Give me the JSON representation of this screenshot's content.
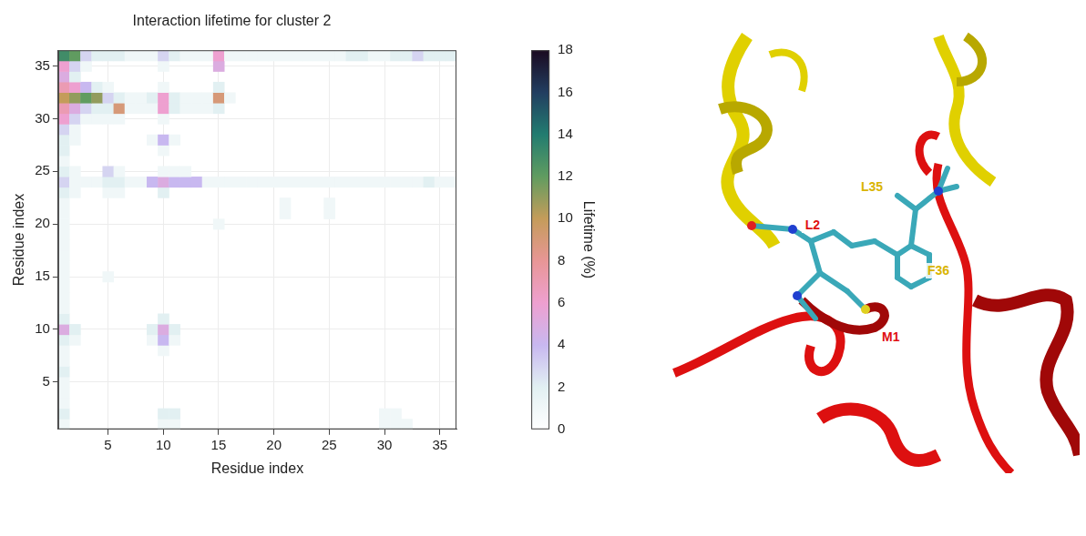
{
  "chart_data": {
    "type": "heatmap",
    "title": "Interaction lifetime for cluster 2",
    "x_label": "Residue index",
    "y_label": "Residue index",
    "x": [
      1,
      2,
      3,
      4,
      5,
      6,
      7,
      8,
      9,
      10,
      11,
      12,
      13,
      14,
      15,
      16,
      17,
      18,
      19,
      20,
      21,
      22,
      23,
      24,
      25,
      26,
      27,
      28,
      29,
      30,
      31,
      32,
      33,
      34,
      35,
      36
    ],
    "y": [
      1,
      2,
      3,
      4,
      5,
      6,
      7,
      8,
      9,
      10,
      11,
      12,
      13,
      14,
      15,
      16,
      17,
      18,
      19,
      20,
      21,
      22,
      23,
      24,
      25,
      26,
      27,
      28,
      29,
      30,
      31,
      32,
      33,
      34,
      35,
      36
    ],
    "xlim": [
      0.5,
      36.5
    ],
    "ylim": [
      0.5,
      36.5
    ],
    "xticks": [
      5,
      10,
      15,
      20,
      25,
      30,
      35
    ],
    "yticks": [
      5,
      10,
      15,
      20,
      25,
      30,
      35
    ],
    "grid": true,
    "z": [
      [
        1,
        0,
        0,
        0,
        0,
        0,
        0,
        0,
        0,
        1,
        1,
        0,
        0,
        0,
        0,
        0,
        0,
        0,
        0,
        0,
        0,
        0,
        0,
        0,
        0,
        0,
        0,
        0,
        0,
        1,
        1,
        1,
        0,
        0,
        0,
        0
      ],
      [
        2,
        0,
        0,
        0,
        0,
        0,
        0,
        0,
        0,
        2,
        2,
        0,
        0,
        0,
        0,
        0,
        0,
        0,
        0,
        0,
        0,
        0,
        0,
        0,
        0,
        0,
        0,
        0,
        0,
        1,
        1,
        0,
        0,
        0,
        0,
        0
      ],
      [
        1,
        0,
        0,
        0,
        0,
        0,
        0,
        0,
        0,
        0,
        0,
        0,
        0,
        0,
        0,
        0,
        0,
        0,
        0,
        0,
        0,
        0,
        0,
        0,
        0,
        0,
        0,
        0,
        0,
        0,
        0,
        0,
        0,
        0,
        0,
        0
      ],
      [
        1,
        0,
        0,
        0,
        0,
        0,
        0,
        0,
        0,
        0,
        0,
        0,
        0,
        0,
        0,
        0,
        0,
        0,
        0,
        0,
        0,
        0,
        0,
        0,
        0,
        0,
        0,
        0,
        0,
        0,
        0,
        0,
        0,
        0,
        0,
        0
      ],
      [
        1,
        0,
        0,
        0,
        0,
        0,
        0,
        0,
        0,
        0,
        0,
        0,
        0,
        0,
        0,
        0,
        0,
        0,
        0,
        0,
        0,
        0,
        0,
        0,
        0,
        0,
        0,
        0,
        0,
        0,
        0,
        0,
        0,
        0,
        0,
        0
      ],
      [
        2,
        0,
        0,
        0,
        0,
        0,
        0,
        0,
        0,
        0,
        0,
        0,
        0,
        0,
        0,
        0,
        0,
        0,
        0,
        0,
        0,
        0,
        0,
        0,
        0,
        0,
        0,
        0,
        0,
        0,
        0,
        0,
        0,
        0,
        0,
        0
      ],
      [
        1,
        0,
        0,
        0,
        0,
        0,
        0,
        0,
        0,
        0,
        0,
        0,
        0,
        0,
        0,
        0,
        0,
        0,
        0,
        0,
        0,
        0,
        0,
        0,
        0,
        0,
        0,
        0,
        0,
        0,
        0,
        0,
        0,
        0,
        0,
        0
      ],
      [
        1,
        0,
        0,
        0,
        0,
        0,
        0,
        0,
        0,
        1,
        0,
        0,
        0,
        0,
        0,
        0,
        0,
        0,
        0,
        0,
        0,
        0,
        0,
        0,
        0,
        0,
        0,
        0,
        0,
        0,
        0,
        0,
        0,
        0,
        0,
        0
      ],
      [
        2,
        1,
        0,
        0,
        0,
        0,
        0,
        0,
        1,
        4,
        1,
        0,
        0,
        0,
        0,
        0,
        0,
        0,
        0,
        0,
        0,
        0,
        0,
        0,
        0,
        0,
        0,
        0,
        0,
        0,
        0,
        0,
        0,
        0,
        0,
        0
      ],
      [
        5,
        2,
        0,
        0,
        0,
        0,
        0,
        0,
        2,
        5,
        2,
        0,
        0,
        0,
        0,
        0,
        0,
        0,
        0,
        0,
        0,
        0,
        0,
        0,
        0,
        0,
        0,
        0,
        0,
        0,
        0,
        0,
        0,
        0,
        0,
        0
      ],
      [
        2,
        0,
        0,
        0,
        0,
        0,
        0,
        0,
        0,
        2,
        0,
        0,
        0,
        0,
        0,
        0,
        0,
        0,
        0,
        0,
        0,
        0,
        0,
        0,
        0,
        0,
        0,
        0,
        0,
        0,
        0,
        0,
        0,
        0,
        0,
        0
      ],
      [
        1,
        0,
        0,
        0,
        0,
        0,
        0,
        0,
        0,
        0,
        0,
        0,
        0,
        0,
        0,
        0,
        0,
        0,
        0,
        0,
        0,
        0,
        0,
        0,
        0,
        0,
        0,
        0,
        0,
        0,
        0,
        0,
        0,
        0,
        0,
        0
      ],
      [
        1,
        0,
        0,
        0,
        0,
        0,
        0,
        0,
        0,
        0,
        0,
        0,
        0,
        0,
        0,
        0,
        0,
        0,
        0,
        0,
        0,
        0,
        0,
        0,
        0,
        0,
        0,
        0,
        0,
        0,
        0,
        0,
        0,
        0,
        0,
        0
      ],
      [
        1,
        0,
        0,
        0,
        0,
        0,
        0,
        0,
        0,
        0,
        0,
        0,
        0,
        0,
        0,
        0,
        0,
        0,
        0,
        0,
        0,
        0,
        0,
        0,
        0,
        0,
        0,
        0,
        0,
        0,
        0,
        0,
        0,
        0,
        0,
        0
      ],
      [
        1,
        0,
        0,
        0,
        1,
        0,
        0,
        0,
        0,
        0,
        0,
        0,
        0,
        0,
        0,
        0,
        0,
        0,
        0,
        0,
        0,
        0,
        0,
        0,
        0,
        0,
        0,
        0,
        0,
        0,
        0,
        0,
        0,
        0,
        0,
        0
      ],
      [
        1,
        0,
        0,
        0,
        0,
        0,
        0,
        0,
        0,
        0,
        0,
        0,
        0,
        0,
        0,
        0,
        0,
        0,
        0,
        0,
        0,
        0,
        0,
        0,
        0,
        0,
        0,
        0,
        0,
        0,
        0,
        0,
        0,
        0,
        0,
        0
      ],
      [
        1,
        0,
        0,
        0,
        0,
        0,
        0,
        0,
        0,
        0,
        0,
        0,
        0,
        0,
        0,
        0,
        0,
        0,
        0,
        0,
        0,
        0,
        0,
        0,
        0,
        0,
        0,
        0,
        0,
        0,
        0,
        0,
        0,
        0,
        0,
        0
      ],
      [
        1,
        0,
        0,
        0,
        0,
        0,
        0,
        0,
        0,
        0,
        0,
        0,
        0,
        0,
        0,
        0,
        0,
        0,
        0,
        0,
        0,
        0,
        0,
        0,
        0,
        0,
        0,
        0,
        0,
        0,
        0,
        0,
        0,
        0,
        0,
        0
      ],
      [
        1,
        0,
        0,
        0,
        0,
        0,
        0,
        0,
        0,
        0,
        0,
        0,
        0,
        0,
        0,
        0,
        0,
        0,
        0,
        0,
        0,
        0,
        0,
        0,
        0,
        0,
        0,
        0,
        0,
        0,
        0,
        0,
        0,
        0,
        0,
        0
      ],
      [
        1,
        0,
        0,
        0,
        0,
        0,
        0,
        0,
        0,
        0,
        0,
        0,
        0,
        0,
        1,
        0,
        0,
        0,
        0,
        0,
        0,
        0,
        0,
        0,
        0,
        0,
        0,
        0,
        0,
        0,
        0,
        0,
        0,
        0,
        0,
        0
      ],
      [
        1,
        0,
        0,
        0,
        0,
        0,
        0,
        0,
        0,
        0,
        0,
        0,
        0,
        0,
        0,
        0,
        0,
        0,
        0,
        0,
        1,
        0,
        0,
        0,
        1,
        0,
        0,
        0,
        0,
        0,
        0,
        0,
        0,
        0,
        0,
        0
      ],
      [
        1,
        0,
        0,
        0,
        0,
        0,
        0,
        0,
        0,
        0,
        0,
        0,
        0,
        0,
        0,
        0,
        0,
        0,
        0,
        0,
        1,
        0,
        0,
        0,
        1,
        0,
        0,
        0,
        0,
        0,
        0,
        0,
        0,
        0,
        0,
        0
      ],
      [
        2,
        1,
        0,
        0,
        1,
        1,
        0,
        0,
        0,
        2,
        0,
        0,
        0,
        0,
        0,
        0,
        0,
        0,
        0,
        0,
        0,
        0,
        0,
        0,
        0,
        0,
        0,
        0,
        0,
        0,
        0,
        0,
        0,
        0,
        0,
        0
      ],
      [
        3,
        1,
        1,
        1,
        2,
        2,
        1,
        1,
        4,
        5,
        4,
        4,
        4,
        1,
        1,
        1,
        1,
        1,
        1,
        1,
        1,
        1,
        1,
        1,
        1,
        1,
        1,
        1,
        1,
        1,
        1,
        1,
        1,
        2,
        1,
        1
      ],
      [
        2,
        1,
        0,
        0,
        3,
        1,
        0,
        0,
        0,
        1,
        1,
        1,
        0,
        0,
        0,
        0,
        0,
        0,
        0,
        0,
        0,
        0,
        0,
        0,
        0,
        0,
        0,
        0,
        0,
        0,
        0,
        0,
        0,
        0,
        0,
        0
      ],
      [
        1,
        0,
        0,
        0,
        0,
        0,
        0,
        0,
        0,
        0,
        0,
        0,
        0,
        0,
        0,
        0,
        0,
        0,
        0,
        0,
        0,
        0,
        0,
        0,
        0,
        0,
        0,
        0,
        0,
        0,
        0,
        0,
        0,
        0,
        0,
        0
      ],
      [
        2,
        0,
        0,
        0,
        0,
        0,
        0,
        0,
        0,
        1,
        0,
        0,
        0,
        0,
        0,
        0,
        0,
        0,
        0,
        0,
        0,
        0,
        0,
        0,
        0,
        0,
        0,
        0,
        0,
        0,
        0,
        0,
        0,
        0,
        0,
        0
      ],
      [
        2,
        1,
        0,
        0,
        0,
        0,
        0,
        0,
        1,
        4,
        1,
        0,
        0,
        0,
        0,
        0,
        0,
        0,
        0,
        0,
        0,
        0,
        0,
        0,
        0,
        0,
        0,
        0,
        0,
        0,
        0,
        0,
        0,
        0,
        0,
        0
      ],
      [
        3,
        1,
        0,
        0,
        0,
        0,
        0,
        0,
        0,
        0,
        0,
        0,
        0,
        0,
        0,
        0,
        0,
        0,
        0,
        0,
        0,
        0,
        0,
        0,
        0,
        0,
        0,
        0,
        0,
        0,
        0,
        0,
        0,
        0,
        0,
        0
      ],
      [
        6,
        3,
        1,
        1,
        1,
        1,
        0,
        0,
        0,
        1,
        0,
        0,
        0,
        0,
        0,
        0,
        0,
        0,
        0,
        0,
        0,
        0,
        0,
        0,
        0,
        0,
        0,
        0,
        0,
        0,
        0,
        0,
        0,
        0,
        0,
        0
      ],
      [
        7,
        5,
        3,
        2,
        2,
        9,
        1,
        1,
        1,
        6,
        2,
        1,
        1,
        1,
        2,
        0,
        0,
        0,
        0,
        0,
        0,
        0,
        0,
        0,
        0,
        0,
        0,
        0,
        0,
        0,
        0,
        0,
        0,
        0,
        0,
        0
      ],
      [
        10,
        11,
        12,
        11,
        3,
        2,
        1,
        1,
        2,
        6,
        2,
        1,
        1,
        1,
        9,
        1,
        0,
        0,
        0,
        0,
        0,
        0,
        0,
        0,
        0,
        0,
        0,
        0,
        0,
        0,
        0,
        0,
        0,
        0,
        0,
        0
      ],
      [
        7,
        6,
        4,
        2,
        1,
        0,
        0,
        0,
        0,
        1,
        0,
        0,
        0,
        0,
        2,
        0,
        0,
        0,
        0,
        0,
        0,
        0,
        0,
        0,
        0,
        0,
        0,
        0,
        0,
        0,
        0,
        0,
        0,
        0,
        0,
        0
      ],
      [
        5,
        2,
        0,
        0,
        0,
        0,
        0,
        0,
        0,
        0,
        0,
        0,
        0,
        0,
        0,
        0,
        0,
        0,
        0,
        0,
        0,
        0,
        0,
        0,
        0,
        0,
        0,
        0,
        0,
        0,
        0,
        0,
        0,
        0,
        0,
        0
      ],
      [
        6,
        3,
        1,
        0,
        0,
        0,
        0,
        0,
        0,
        1,
        0,
        0,
        0,
        0,
        5,
        0,
        0,
        0,
        0,
        0,
        0,
        0,
        0,
        0,
        0,
        0,
        0,
        0,
        0,
        0,
        0,
        0,
        0,
        0,
        0,
        0
      ],
      [
        13,
        12,
        3,
        2,
        2,
        2,
        1,
        1,
        1,
        3,
        2,
        1,
        1,
        1,
        6,
        1,
        1,
        1,
        1,
        1,
        1,
        1,
        1,
        1,
        1,
        1,
        2,
        2,
        1,
        1,
        2,
        2,
        3,
        2,
        2,
        2
      ]
    ],
    "colorbar": {
      "label": "Lifetime (%)",
      "lim": [
        0,
        18
      ],
      "ticks": [
        0,
        2,
        4,
        6,
        8,
        10,
        12,
        14,
        16,
        18
      ]
    }
  },
  "structure": {
    "labels": [
      {
        "text": "L35",
        "color": "#d9b400"
      },
      {
        "text": "L2",
        "color": "#e01010"
      },
      {
        "text": "F36",
        "color": "#d9b400"
      },
      {
        "text": "M1",
        "color": "#e01010"
      }
    ]
  }
}
